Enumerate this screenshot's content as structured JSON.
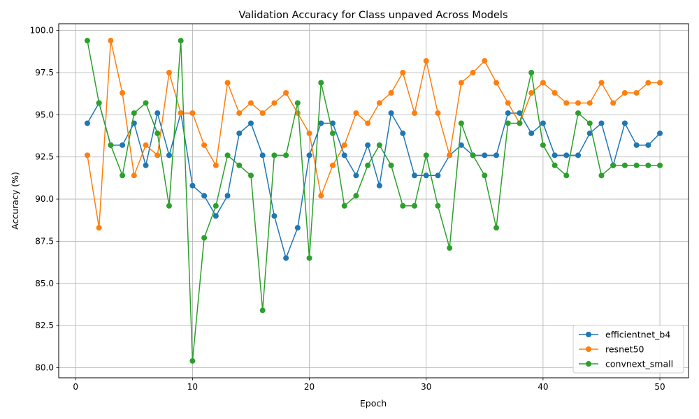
{
  "chart_data": {
    "type": "line",
    "title": "Validation Accuracy for Class unpaved Across Models",
    "xlabel": "Epoch",
    "ylabel": "Accuracy (%)",
    "xlim": [
      -1.45,
      52.45
    ],
    "ylim": [
      79.4,
      100.4
    ],
    "xticks": [
      0,
      10,
      20,
      30,
      40,
      50
    ],
    "yticks": [
      80.0,
      82.5,
      85.0,
      87.5,
      90.0,
      92.5,
      95.0,
      97.5,
      100.0
    ],
    "grid": true,
    "legend_position": "bottom-right",
    "x": [
      1,
      2,
      3,
      4,
      5,
      6,
      7,
      8,
      9,
      10,
      11,
      12,
      13,
      14,
      15,
      16,
      17,
      18,
      19,
      20,
      21,
      22,
      23,
      24,
      25,
      26,
      27,
      28,
      29,
      30,
      31,
      32,
      33,
      34,
      35,
      36,
      37,
      38,
      39,
      40,
      41,
      42,
      43,
      44,
      45,
      46,
      47,
      48,
      49,
      50
    ],
    "series": [
      {
        "name": "efficientnet_b4",
        "color": "#1f77b4",
        "values": [
          94.5,
          95.7,
          93.2,
          93.2,
          94.5,
          92.0,
          95.1,
          92.6,
          95.1,
          90.8,
          90.2,
          89.0,
          90.2,
          93.9,
          94.5,
          92.6,
          89.0,
          86.5,
          88.3,
          92.6,
          94.5,
          94.5,
          92.6,
          91.4,
          93.2,
          90.8,
          95.1,
          93.9,
          91.4,
          91.4,
          91.4,
          92.6,
          93.2,
          92.6,
          92.6,
          92.6,
          95.1,
          95.1,
          93.9,
          94.5,
          92.6,
          92.6,
          92.6,
          93.9,
          94.5,
          92.0,
          94.5,
          93.2,
          93.2,
          93.9
        ]
      },
      {
        "name": "resnet50",
        "color": "#ff7f0e",
        "values": [
          92.6,
          88.3,
          99.4,
          96.3,
          91.4,
          93.2,
          92.6,
          97.5,
          95.1,
          95.1,
          93.2,
          92.0,
          96.9,
          95.1,
          95.7,
          95.1,
          95.7,
          96.3,
          95.1,
          93.9,
          90.2,
          92.0,
          93.2,
          95.1,
          94.5,
          95.7,
          96.3,
          97.5,
          95.1,
          98.2,
          95.1,
          92.6,
          96.9,
          97.5,
          98.2,
          96.9,
          95.7,
          94.5,
          96.3,
          96.9,
          96.3,
          95.7,
          95.7,
          95.7,
          96.9,
          95.7,
          96.3,
          96.3,
          96.9,
          96.9
        ]
      },
      {
        "name": "convnext_small",
        "color": "#2ca02c",
        "values": [
          99.4,
          95.7,
          93.2,
          91.4,
          95.1,
          95.7,
          93.9,
          89.6,
          99.4,
          80.4,
          87.7,
          89.6,
          92.6,
          92.0,
          91.4,
          83.4,
          92.6,
          92.6,
          95.7,
          86.5,
          96.9,
          93.9,
          89.6,
          90.2,
          92.0,
          93.2,
          92.0,
          89.6,
          89.6,
          92.6,
          89.6,
          87.1,
          94.5,
          92.6,
          91.4,
          88.3,
          94.5,
          94.5,
          97.5,
          93.2,
          92.0,
          91.4,
          95.1,
          94.5,
          91.4,
          92.0,
          92.0,
          92.0,
          92.0,
          92.0
        ]
      }
    ]
  }
}
